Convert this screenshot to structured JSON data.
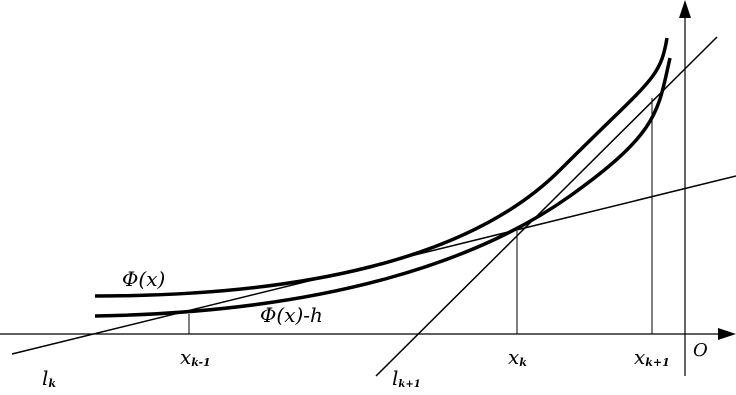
{
  "curves": {
    "phi": "Φ(x)",
    "phi_minus_h": "Φ(x)-h"
  },
  "lines": {
    "l_k": {
      "main": "l",
      "sub": "k"
    },
    "l_k1": {
      "main": "l",
      "sub": "k+1"
    }
  },
  "points": {
    "x_km1": {
      "main": "x",
      "sub": "k-1"
    },
    "x_k": {
      "main": "x",
      "sub": "k"
    },
    "x_kp1": {
      "main": "x",
      "sub": "k+1"
    },
    "origin": "O"
  }
}
